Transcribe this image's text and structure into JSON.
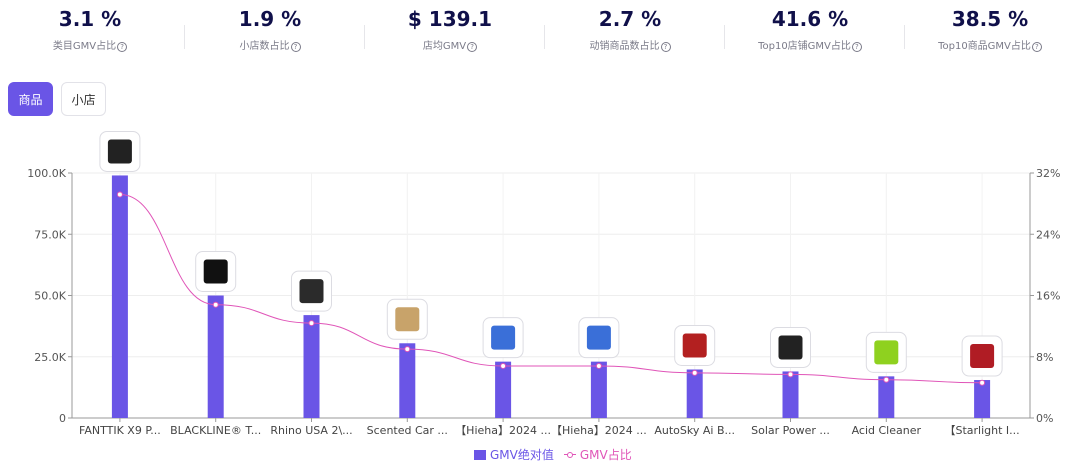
{
  "kpis": [
    {
      "value": "3.1 %",
      "label": "类目GMV占比"
    },
    {
      "value": "1.9 %",
      "label": "小店数占比"
    },
    {
      "value": "$ 139.1",
      "label": "店均GMV"
    },
    {
      "value": "2.7 %",
      "label": "动销商品数占比"
    },
    {
      "value": "41.6 %",
      "label": "Top10店铺GMV占比"
    },
    {
      "value": "38.5 %",
      "label": "Top10商品GMV占比"
    }
  ],
  "tabs": [
    {
      "label": "商品",
      "active": true
    },
    {
      "label": "小店",
      "active": false
    }
  ],
  "colors": {
    "bar": "#6a55e6",
    "line": "#e055b8",
    "accent": "#6a55e6"
  },
  "chart_data": {
    "type": "bar",
    "categories": [
      "FANTTIK X9 P...",
      "BLACKLINE® T...",
      "Rhino USA 2\\...",
      "Scented Car ...",
      "【Hieha】2024 ...",
      "【Hieha】2024 ...",
      "AutoSky Ai B...",
      "Solar Power ...",
      "Acid Cleaner",
      "【Starlight I..."
    ],
    "product_icons": [
      "tire-inflator-icon",
      "car-cover-icon",
      "tow-strap-kit-icon",
      "car-air-freshener-icon",
      "carplay-screen-icon",
      "carplay-screen-icon",
      "car-led-light-icon",
      "solar-dashcam-icon",
      "cleaner-spray-bottle-icon",
      "starlight-headliner-icon"
    ],
    "series": [
      {
        "name": "GMV绝对值",
        "type": "bar",
        "axis": "left",
        "values": [
          99000,
          50000,
          42000,
          30500,
          23000,
          23000,
          19800,
          19000,
          17000,
          15500
        ]
      },
      {
        "name": "GMV占比",
        "type": "line",
        "axis": "right",
        "values": [
          29.2,
          14.8,
          12.4,
          9.0,
          6.8,
          6.8,
          5.9,
          5.7,
          5.0,
          4.6
        ]
      }
    ],
    "y_left": {
      "ticks": [
        "0",
        "25.0K",
        "50.0K",
        "75.0K",
        "100.0K"
      ],
      "range": [
        0,
        100000
      ]
    },
    "y_right": {
      "ticks": [
        "0%",
        "8%",
        "16%",
        "24%",
        "32%"
      ],
      "range": [
        0,
        32
      ]
    },
    "grid": true,
    "legend": "bottom-center"
  }
}
